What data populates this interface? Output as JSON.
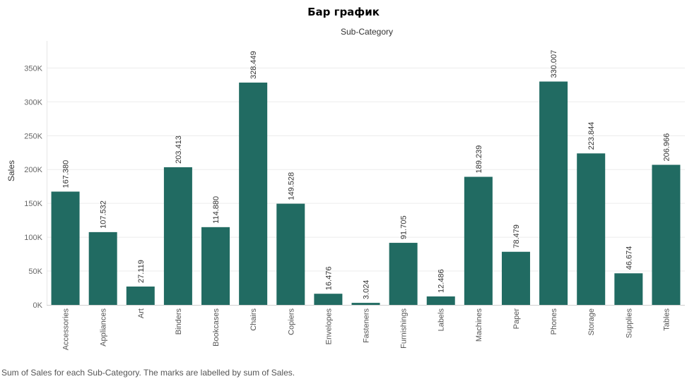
{
  "chart_data": {
    "type": "bar",
    "title": "Бар график",
    "column_header": "Sub-Category",
    "ylabel": "Sales",
    "xlabel": "",
    "caption": "Sum of Sales for each Sub-Category. The marks are labelled by sum of Sales.",
    "categories": [
      "Accessories",
      "Appliances",
      "Art",
      "Binders",
      "Bookcases",
      "Chairs",
      "Copiers",
      "Envelopes",
      "Fasteners",
      "Furnishings",
      "Labels",
      "Machines",
      "Paper",
      "Phones",
      "Storage",
      "Supplies",
      "Tables"
    ],
    "values": [
      167380,
      107532,
      27119,
      203413,
      114880,
      328449,
      149528,
      16476,
      3024,
      91705,
      12486,
      189239,
      78479,
      330007,
      223844,
      46674,
      206966
    ],
    "value_labels": [
      "167.380",
      "107.532",
      "27.119",
      "203.413",
      "114.880",
      "328.449",
      "149.528",
      "16.476",
      "3.024",
      "91.705",
      "12.486",
      "189.239",
      "78.479",
      "330.007",
      "223.844",
      "46.674",
      "206.966"
    ],
    "yticks": [
      0,
      50000,
      100000,
      150000,
      200000,
      250000,
      300000,
      350000
    ],
    "ytick_labels": [
      "0K",
      "50K",
      "100K",
      "150K",
      "200K",
      "250K",
      "300K",
      "350K"
    ],
    "ylim": [
      0,
      390000
    ],
    "bar_color": "#216b62",
    "grid": true,
    "legend": "none"
  }
}
